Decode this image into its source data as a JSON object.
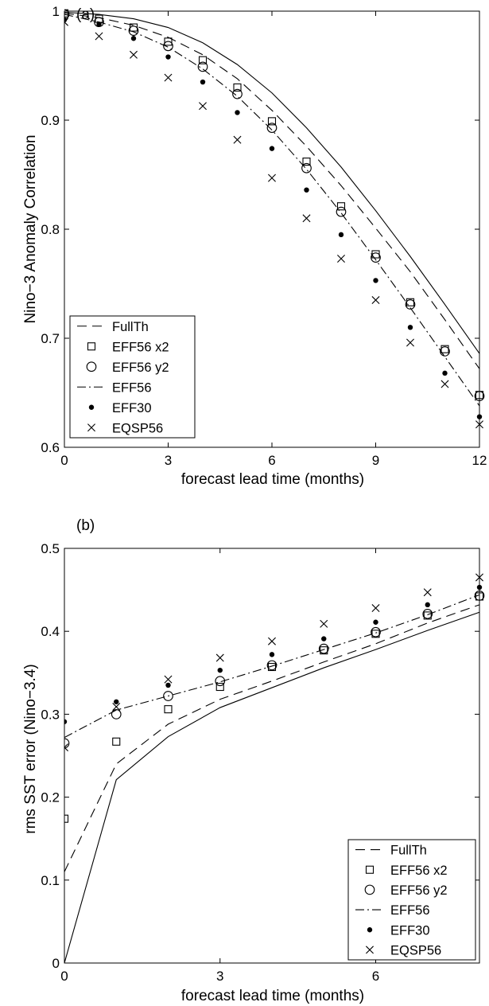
{
  "chart_data": [
    {
      "panel_label": "(a)",
      "type": "line",
      "xlabel": "forecast lead time (months)",
      "ylabel": "Nino−3 Anomaly Correlation",
      "xlim": [
        0,
        12
      ],
      "ylim": [
        0.6,
        1.0
      ],
      "xticks": [
        0,
        3,
        6,
        9,
        12
      ],
      "yticks": [
        0.6,
        0.7,
        0.8,
        0.9,
        1
      ],
      "grid": false,
      "legend_position": "bottom-left",
      "lines": [
        {
          "name": "FullTh",
          "style": "dashed",
          "x": [
            0,
            1,
            2,
            3,
            4,
            5,
            6,
            7,
            8,
            9,
            10,
            11,
            12
          ],
          "y": [
            0.998,
            0.994,
            0.987,
            0.976,
            0.96,
            0.938,
            0.909,
            0.876,
            0.84,
            0.801,
            0.761,
            0.717,
            0.672
          ]
        },
        {
          "name": "",
          "style": "solid",
          "x": [
            0,
            1,
            2,
            3,
            4,
            5,
            6,
            7,
            8,
            9,
            10,
            11,
            12
          ],
          "y": [
            0.999,
            0.997,
            0.993,
            0.985,
            0.971,
            0.951,
            0.925,
            0.893,
            0.857,
            0.817,
            0.775,
            0.731,
            0.686
          ]
        },
        {
          "name": "EFF56",
          "style": "dashdot",
          "x": [
            0,
            1,
            2,
            3,
            4,
            5,
            6,
            7,
            8,
            9,
            10,
            11,
            12
          ],
          "y": [
            0.997,
            0.99,
            0.981,
            0.967,
            0.947,
            0.922,
            0.891,
            0.855,
            0.815,
            0.772,
            0.728,
            0.683,
            0.638
          ]
        }
      ],
      "markers": [
        {
          "name": "EFF56 x2",
          "marker": "square",
          "x": [
            0,
            1,
            2,
            3,
            4,
            5,
            6,
            7,
            8,
            9,
            10,
            11,
            12
          ],
          "y": [
            0.998,
            0.993,
            0.985,
            0.972,
            0.955,
            0.93,
            0.899,
            0.862,
            0.821,
            0.777,
            0.733,
            0.69,
            0.648
          ]
        },
        {
          "name": "EFF56 y2",
          "marker": "circle",
          "x": [
            0,
            1,
            2,
            3,
            4,
            5,
            6,
            7,
            8,
            9,
            10,
            11,
            12
          ],
          "y": [
            0.997,
            0.99,
            0.982,
            0.968,
            0.949,
            0.924,
            0.893,
            0.856,
            0.816,
            0.774,
            0.731,
            0.688,
            0.647
          ]
        },
        {
          "name": "EFF30",
          "marker": "dot",
          "x": [
            0,
            1,
            2,
            3,
            4,
            5,
            6,
            7,
            8,
            9,
            10,
            11,
            12
          ],
          "y": [
            0.992,
            0.988,
            0.975,
            0.958,
            0.935,
            0.907,
            0.874,
            0.836,
            0.795,
            0.753,
            0.71,
            0.668,
            0.628
          ]
        },
        {
          "name": "EQSP56",
          "marker": "x",
          "x": [
            0,
            1,
            2,
            3,
            4,
            5,
            6,
            7,
            8,
            9,
            10,
            11,
            12
          ],
          "y": [
            0.99,
            0.977,
            0.96,
            0.939,
            0.913,
            0.882,
            0.847,
            0.81,
            0.773,
            0.735,
            0.696,
            0.658,
            0.621
          ]
        }
      ],
      "legend": [
        "FullTh",
        "EFF56 x2",
        "EFF56 y2",
        "EFF56",
        "EFF30",
        "EQSP56"
      ]
    },
    {
      "panel_label": "(b)",
      "type": "line",
      "xlabel": "forecast lead time (months)",
      "ylabel": "rms SST error (Nino−3.4)",
      "xlim": [
        0,
        8
      ],
      "ylim": [
        0,
        0.5
      ],
      "xticks": [
        0,
        3,
        6
      ],
      "yticks": [
        0,
        0.1,
        0.2,
        0.3,
        0.4,
        0.5
      ],
      "grid": false,
      "legend_position": "bottom-right",
      "lines": [
        {
          "name": "FullTh",
          "style": "dashed",
          "x": [
            0,
            1,
            2,
            3,
            4,
            5,
            6,
            7,
            8
          ],
          "y": [
            0.11,
            0.24,
            0.288,
            0.318,
            0.34,
            0.363,
            0.385,
            0.41,
            0.432
          ]
        },
        {
          "name": "",
          "style": "solid",
          "x": [
            0,
            1,
            2,
            3,
            4,
            5,
            6,
            7,
            8
          ],
          "y": [
            0.0,
            0.221,
            0.273,
            0.308,
            0.332,
            0.356,
            0.378,
            0.401,
            0.423
          ]
        },
        {
          "name": "EFF56",
          "style": "dashdot",
          "x": [
            0,
            1,
            2,
            3,
            4,
            5,
            6,
            7,
            8
          ],
          "y": [
            0.272,
            0.305,
            0.322,
            0.339,
            0.358,
            0.378,
            0.398,
            0.42,
            0.444
          ]
        }
      ],
      "markers": [
        {
          "name": "EFF56 x2",
          "marker": "square",
          "x": [
            0,
            1,
            2,
            3,
            4,
            5,
            6,
            7,
            8
          ],
          "y": [
            0.174,
            0.267,
            0.306,
            0.333,
            0.357,
            0.377,
            0.397,
            0.419,
            0.442
          ]
        },
        {
          "name": "EFF56 y2",
          "marker": "circle",
          "x": [
            0,
            1,
            2,
            3,
            4,
            5,
            6,
            7,
            8
          ],
          "y": [
            0.265,
            0.3,
            0.322,
            0.34,
            0.359,
            0.379,
            0.399,
            0.421,
            0.443
          ]
        },
        {
          "name": "EFF30",
          "marker": "dot",
          "x": [
            0,
            1,
            2,
            3,
            4,
            5,
            6,
            7,
            8
          ],
          "y": [
            0.291,
            0.315,
            0.335,
            0.353,
            0.372,
            0.391,
            0.411,
            0.432,
            0.453
          ]
        },
        {
          "name": "EQSP56",
          "marker": "x",
          "x": [
            0,
            1,
            2,
            3,
            4,
            5,
            6,
            7,
            8
          ],
          "y": [
            0.26,
            0.309,
            0.342,
            0.368,
            0.388,
            0.409,
            0.428,
            0.447,
            0.465
          ]
        }
      ],
      "legend": [
        "FullTh",
        "EFF56 x2",
        "EFF56 y2",
        "EFF56",
        "EFF30",
        "EQSP56"
      ]
    }
  ]
}
